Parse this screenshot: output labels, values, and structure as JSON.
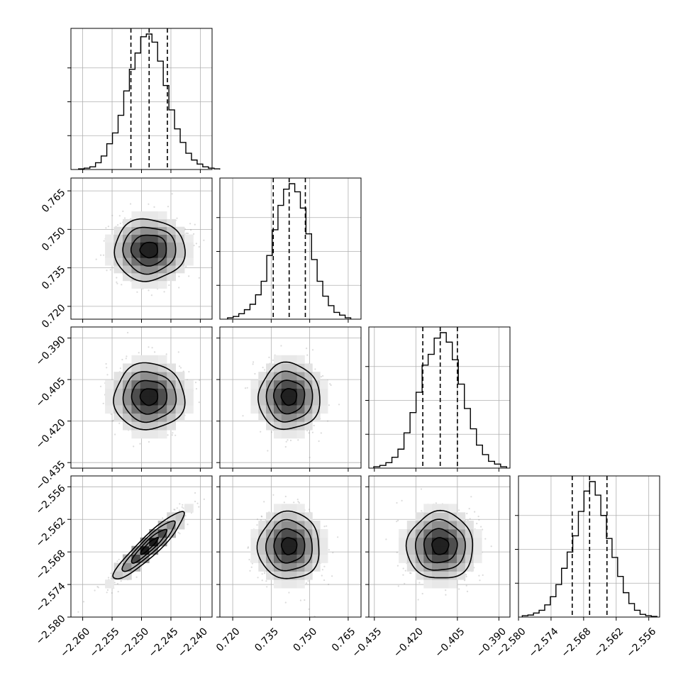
{
  "chart_data": {
    "type": "corner",
    "title": "",
    "parameters": [
      {
        "id": "p0",
        "range": [
          -2.262,
          -2.238
        ],
        "ticks": [
          -2.26,
          -2.255,
          -2.25,
          -2.245,
          -2.24
        ],
        "tick_labels": [
          "−2.260",
          "−2.255",
          "−2.250",
          "−2.245",
          "−2.240"
        ],
        "mean": -2.2487,
        "sigma": 0.003,
        "quantiles": [
          -2.2518,
          -2.2487,
          -2.2456
        ],
        "histogram": [
          0.5,
          1,
          2,
          5,
          10,
          19,
          27,
          40,
          58,
          74,
          86,
          98,
          100,
          94,
          80,
          62,
          44,
          30,
          20,
          12,
          7,
          4,
          2,
          1,
          0.5
        ]
      },
      {
        "id": "p1",
        "range": [
          0.715,
          0.77
        ],
        "ticks": [
          0.72,
          0.735,
          0.75,
          0.765
        ],
        "tick_labels": [
          "0.720",
          "0.735",
          "0.750",
          "0.765"
        ],
        "mean": 0.742,
        "sigma": 0.006,
        "quantiles": [
          0.7358,
          0.742,
          0.7483
        ],
        "histogram": [
          1,
          2,
          4,
          7,
          11,
          18,
          28,
          47,
          66,
          84,
          96,
          100,
          94,
          82,
          63,
          44,
          28,
          17,
          10,
          5,
          3,
          1
        ]
      },
      {
        "id": "p2",
        "range": [
          -0.437,
          -0.386
        ],
        "ticks": [
          -0.435,
          -0.42,
          -0.405,
          -0.39
        ],
        "tick_labels": [
          "−0.435",
          "−0.420",
          "−0.405",
          "−0.390"
        ],
        "mean": -0.4112,
        "sigma": 0.006,
        "quantiles": [
          -0.4175,
          -0.4112,
          -0.405
        ],
        "histogram": [
          1,
          2,
          4,
          8,
          14,
          26,
          41,
          56,
          76,
          84,
          96,
          100,
          93,
          80,
          62,
          44,
          29,
          17,
          10,
          5,
          3,
          1
        ]
      },
      {
        "id": "p3",
        "range": [
          -2.58,
          -2.554
        ],
        "ticks": [
          -2.58,
          -2.574,
          -2.568,
          -2.562,
          -2.556
        ],
        "tick_labels": [
          "−2.580",
          "−2.574",
          "−2.568",
          "−2.562",
          "−2.556"
        ],
        "mean": -2.5669,
        "sigma": 0.0031,
        "quantiles": [
          -2.5701,
          -2.5669,
          -2.5637
        ],
        "histogram": [
          1,
          1.5,
          3,
          5,
          9,
          15,
          24,
          36,
          48,
          60,
          78,
          93,
          100,
          90,
          75,
          58,
          44,
          30,
          18,
          10,
          5,
          2,
          1,
          0.5
        ]
      }
    ],
    "correlations": [
      {
        "pair": [
          0,
          1
        ],
        "rho": 0.0
      },
      {
        "pair": [
          0,
          2
        ],
        "rho": 0.0
      },
      {
        "pair": [
          1,
          2
        ],
        "rho": 0.0
      },
      {
        "pair": [
          0,
          3
        ],
        "rho": 0.92
      },
      {
        "pair": [
          1,
          3
        ],
        "rho": 0.0
      },
      {
        "pair": [
          2,
          3
        ],
        "rho": 0.0
      }
    ],
    "contour_levels_sigma": [
      0.5,
      1.0,
      1.5,
      2.0
    ],
    "grid": true,
    "colors": {
      "line": "#000000",
      "grid": "#b0b0b0",
      "scatter": "#999999"
    }
  }
}
